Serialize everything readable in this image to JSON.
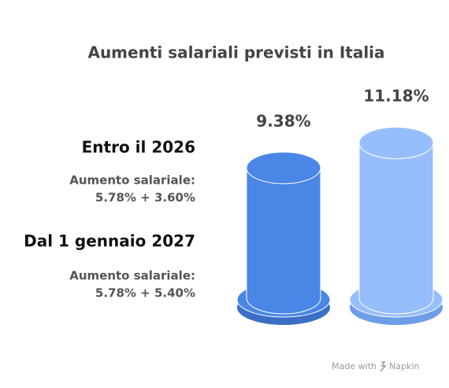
{
  "chart_data": {
    "type": "cylinder",
    "title": "Aumenti salariali previsti in Italia",
    "categories": [
      "Entro il 2026",
      "Dal 1 gennaio 2027"
    ],
    "descriptions": [
      [
        "Aumento salariale:",
        "5.78% + 3.60%"
      ],
      [
        "Aumento salariale:",
        "5.78% + 5.40%"
      ]
    ],
    "values": [
      9.38,
      11.18
    ],
    "value_labels": [
      "9.38%",
      "11.18%"
    ],
    "colors": [
      "#4a86e6",
      "#97befc"
    ]
  },
  "footer": {
    "text": "Made with",
    "brand": "Napkin"
  }
}
